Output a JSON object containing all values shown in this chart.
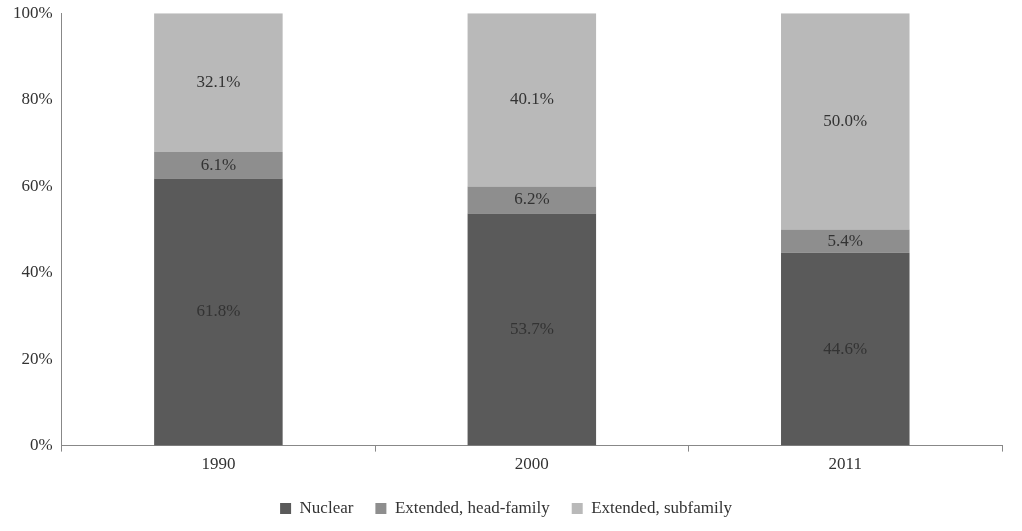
{
  "chart_data": {
    "type": "bar",
    "stacked": true,
    "categories": [
      "1990",
      "2000",
      "2011"
    ],
    "series": [
      {
        "name": "Nuclear",
        "color": "#5a5a5a",
        "values": [
          61.8,
          53.7,
          44.6
        ],
        "value_labels": [
          "61.8%",
          "53.7%",
          "44.6%"
        ]
      },
      {
        "name": "Extended, head-family",
        "color": "#8e8e8e",
        "values": [
          6.1,
          6.2,
          5.4
        ],
        "value_labels": [
          "6.1%",
          "6.2%",
          "5.4%"
        ]
      },
      {
        "name": "Extended, subfamily",
        "color": "#b9b9b9",
        "values": [
          32.1,
          40.1,
          50.0
        ],
        "value_labels": [
          "32.1%",
          "40.1%",
          "50.0%"
        ]
      }
    ],
    "ylim": [
      0,
      100
    ],
    "yticks": [
      {
        "value": 0,
        "label": "0%"
      },
      {
        "value": 20,
        "label": "20%"
      },
      {
        "value": 40,
        "label": "40%"
      },
      {
        "value": 60,
        "label": "60%"
      },
      {
        "value": 80,
        "label": "80%"
      },
      {
        "value": 100,
        "label": "100%"
      }
    ],
    "grid": false,
    "legend": "bottom"
  }
}
